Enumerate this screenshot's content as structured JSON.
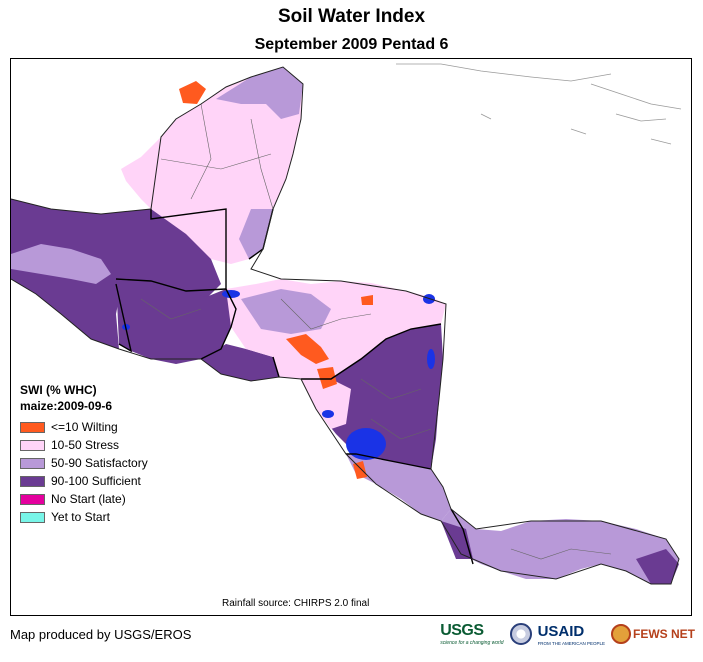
{
  "title": "Soil Water Index",
  "subtitle": "September 2009 Pentad 6",
  "legend": {
    "title": "SWI (% WHC)",
    "crop": "maize:2009-09-6",
    "items": [
      {
        "label": "<=10 Wilting",
        "color": "#ff5a1f"
      },
      {
        "label": "10-50 Stress",
        "color": "#ffd4f8"
      },
      {
        "label": "50-90 Satisfactory",
        "color": "#b899d8"
      },
      {
        "label": "90-100 Sufficient",
        "color": "#6a3b92"
      },
      {
        "label": "No Start (late)",
        "color": "#e4009e"
      },
      {
        "label": "Yet to Start",
        "color": "#78f5e8"
      }
    ]
  },
  "water_color": "#1a33e6",
  "rainfall_source": "Rainfall source: CHIRPS 2.0 final",
  "produced_by": "Map produced by USGS/EROS",
  "logos": {
    "usgs": "USGS",
    "usgs_tagline": "science for a changing world",
    "usaid": "USAID",
    "usaid_tagline": "FROM THE AMERICAN PEOPLE",
    "fews": "FEWS NET"
  }
}
